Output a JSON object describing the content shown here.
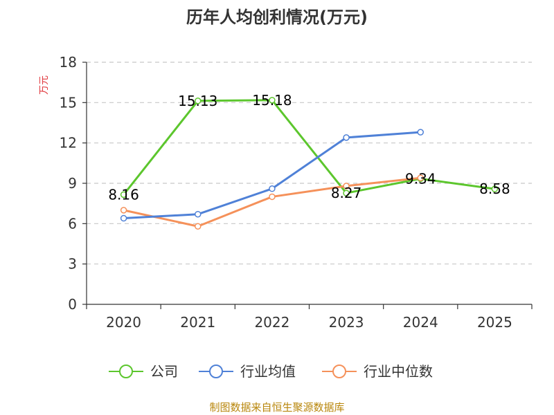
{
  "chart_data": {
    "type": "line",
    "title": "历年人均创利情况(万元)",
    "ylabel": "万元",
    "xlabel": "",
    "ylim": [
      0,
      18
    ],
    "yticks": [
      0,
      3,
      6,
      9,
      12,
      15,
      18
    ],
    "grid": true,
    "legend_position": "bottom",
    "categories": [
      "2020",
      "2021",
      "2022",
      "2023",
      "2024",
      "2025"
    ],
    "series": [
      {
        "name": "公司",
        "color": "#5cc62d",
        "values": [
          8.16,
          15.13,
          15.18,
          8.27,
          9.34,
          8.58
        ],
        "labels": [
          "8.16",
          "15.13",
          "15.18",
          "8.27",
          "9.34",
          "8.58"
        ]
      },
      {
        "name": "行业均值",
        "color": "#4f81d7",
        "values": [
          6.4,
          6.7,
          8.6,
          12.4,
          12.8,
          null
        ]
      },
      {
        "name": "行业中位数",
        "color": "#f5915a",
        "values": [
          7.0,
          5.8,
          8.0,
          8.8,
          9.4,
          null
        ]
      }
    ]
  },
  "footer": "制图数据来自恒生聚源数据库"
}
